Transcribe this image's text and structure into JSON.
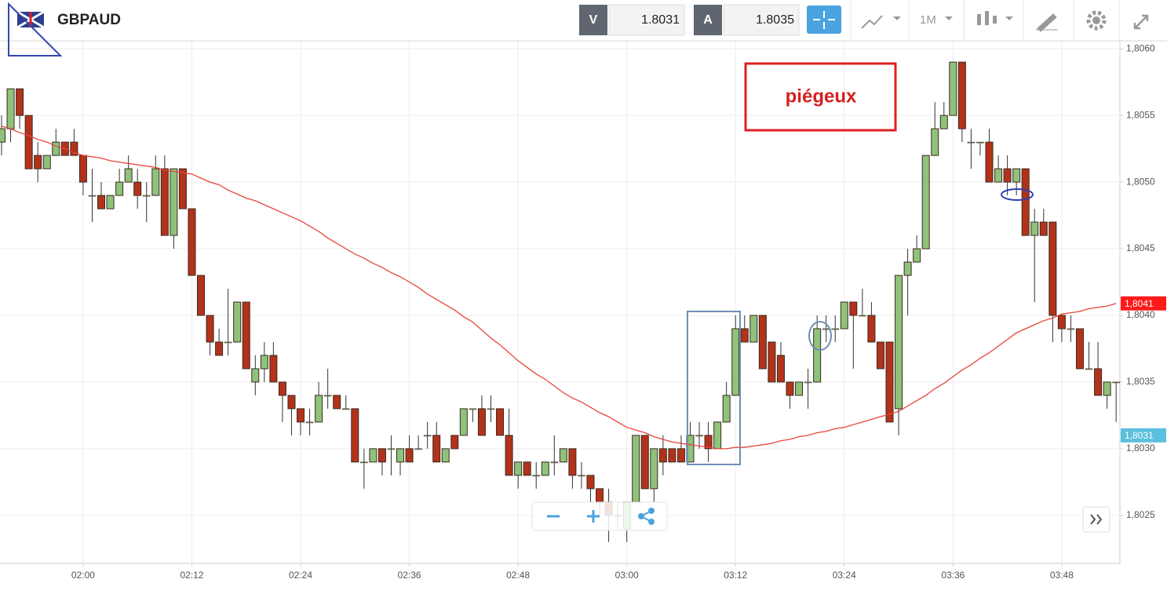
{
  "toolbar": {
    "symbol": "GBPAUD",
    "bid_label": "V",
    "bid": "1.8031",
    "ask_label": "A",
    "ask": "1.8035",
    "timeframe": "1M"
  },
  "chart_data": {
    "type": "candlestick",
    "annotation": "piégeux",
    "categories": [
      null,
      null,
      null,
      null,
      null,
      null,
      null,
      null,
      null,
      "02:00",
      null,
      null,
      null,
      null,
      null,
      null,
      null,
      null,
      null,
      null,
      null,
      "02:12",
      null,
      null,
      null,
      null,
      null,
      null,
      null,
      null,
      null,
      null,
      null,
      "02:24",
      null,
      null,
      null,
      null,
      null,
      null,
      null,
      null,
      null,
      null,
      null,
      "02:36",
      null,
      null,
      null,
      null,
      null,
      null,
      null,
      null,
      null,
      null,
      null,
      "02:48",
      null,
      null,
      null,
      null,
      null,
      null,
      null,
      null,
      null,
      null,
      null,
      "03:00",
      null,
      null,
      null,
      null,
      null,
      null,
      null,
      null,
      null,
      null,
      null,
      "03:12",
      null,
      null,
      null,
      null,
      null,
      null,
      null,
      null,
      null,
      null,
      null,
      "03:24",
      null,
      null,
      null,
      null,
      null,
      null,
      null,
      null,
      null,
      null,
      null,
      "03:36",
      null,
      null,
      null,
      null,
      null,
      null,
      null,
      null,
      null,
      null,
      null,
      "03:48",
      null,
      null,
      null,
      null,
      null,
      null
    ],
    "open": [
      1.8053,
      1.8054,
      1.8057,
      1.8055,
      1.8052,
      1.8051,
      1.8052,
      1.8053,
      1.8053,
      1.8052,
      1.8049,
      1.8049,
      1.8048,
      1.8049,
      1.805,
      1.805,
      1.8049,
      1.8049,
      1.8051,
      1.8046,
      1.8051,
      1.8048,
      1.8043,
      1.804,
      1.8038,
      1.8038,
      1.8038,
      1.8041,
      1.8035,
      1.8036,
      1.8037,
      1.8035,
      1.8034,
      1.8033,
      1.8032,
      1.8032,
      1.8034,
      1.8034,
      1.8033,
      1.8033,
      1.8029,
      1.8029,
      1.803,
      1.803,
      1.8029,
      1.803,
      1.803,
      1.8031,
      1.8031,
      1.8029,
      1.8031,
      1.8031,
      1.8033,
      1.8033,
      1.8033,
      1.8033,
      1.8031,
      1.8028,
      1.8029,
      1.8028,
      1.8028,
      1.8029,
      1.8029,
      1.803,
      1.8028,
      1.8028,
      1.8027,
      1.8026,
      1.8025,
      1.8024,
      1.8026,
      1.8031,
      1.8027,
      1.803,
      1.803,
      1.803,
      1.8029,
      1.8031,
      1.8031,
      1.803,
      1.8032,
      1.8034,
      1.8039,
      1.8038,
      1.804,
      1.8038,
      1.8037,
      1.8035,
      1.8034,
      1.8035,
      1.8035,
      1.8039,
      1.8039,
      1.8039,
      1.8041,
      1.804,
      1.804,
      1.8038,
      1.8038,
      1.8033,
      1.8043,
      1.8044,
      1.8045,
      1.8052,
      1.8054,
      1.8055,
      1.8059,
      1.8053,
      1.8053,
      1.8053,
      1.805,
      1.8051,
      1.805,
      1.8051,
      1.8046,
      1.8047,
      1.8047,
      1.804,
      1.8039,
      1.8039,
      1.8036,
      1.8036,
      1.8034,
      1.8035
    ],
    "high": [
      1.8055,
      1.8057,
      1.8057,
      1.8055,
      1.8053,
      1.8052,
      1.8054,
      1.8053,
      1.8054,
      1.8052,
      1.8051,
      1.805,
      1.8049,
      1.8051,
      1.8052,
      1.8051,
      1.805,
      1.8052,
      1.8052,
      1.8051,
      1.8051,
      1.8048,
      1.8043,
      1.804,
      1.8039,
      1.8042,
      1.8041,
      1.8041,
      1.8037,
      1.8038,
      1.8038,
      1.8035,
      1.8034,
      1.8033,
      1.8033,
      1.8035,
      1.8036,
      1.8034,
      1.8034,
      1.8033,
      1.803,
      1.803,
      1.803,
      1.8031,
      1.803,
      1.8031,
      1.8031,
      1.8032,
      1.8032,
      1.803,
      1.8031,
      1.8033,
      1.8033,
      1.8034,
      1.8034,
      1.8033,
      1.8033,
      1.8029,
      1.8029,
      1.8029,
      1.8029,
      1.8031,
      1.803,
      1.803,
      1.8029,
      1.8028,
      1.8027,
      1.8027,
      1.8026,
      1.8026,
      1.8031,
      1.8031,
      1.803,
      1.8031,
      1.803,
      1.8031,
      1.8032,
      1.8032,
      1.8032,
      1.8032,
      1.8035,
      1.804,
      1.804,
      1.804,
      1.804,
      1.8038,
      1.8038,
      1.8035,
      1.8035,
      1.8036,
      1.804,
      1.804,
      1.804,
      1.8041,
      1.8041,
      1.8042,
      1.8041,
      1.8038,
      1.8038,
      1.8043,
      1.8045,
      1.8046,
      1.8052,
      1.8056,
      1.8056,
      1.8059,
      1.8059,
      1.8054,
      1.8053,
      1.8054,
      1.8052,
      1.8052,
      1.8051,
      1.8051,
      1.8048,
      1.8048,
      1.8047,
      1.804,
      1.804,
      1.8039,
      1.8038,
      1.8038,
      1.8035,
      1.8035
    ],
    "low": [
      1.8052,
      1.8053,
      1.8054,
      1.8051,
      1.805,
      1.8051,
      1.8052,
      1.8052,
      1.8052,
      1.8049,
      1.8047,
      1.8048,
      1.8048,
      1.8049,
      1.805,
      1.8048,
      1.8047,
      1.8049,
      1.8046,
      1.8045,
      1.8048,
      1.8043,
      1.804,
      1.8037,
      1.8037,
      1.8037,
      1.8038,
      1.8036,
      1.8034,
      1.8035,
      1.8035,
      1.8032,
      1.8031,
      1.8031,
      1.8031,
      1.8032,
      1.8033,
      1.8033,
      1.8033,
      1.8029,
      1.8027,
      1.8029,
      1.8028,
      1.8028,
      1.8028,
      1.8029,
      1.803,
      1.803,
      1.8029,
      1.8029,
      1.803,
      1.8031,
      1.8032,
      1.8031,
      1.8032,
      1.8031,
      1.8028,
      1.8027,
      1.8028,
      1.8027,
      1.8028,
      1.8028,
      1.8029,
      1.8027,
      1.8027,
      1.8026,
      1.8025,
      1.8023,
      1.8024,
      1.8023,
      1.8026,
      1.8027,
      1.8026,
      1.8028,
      1.8029,
      1.8029,
      1.8029,
      1.803,
      1.8029,
      1.803,
      1.8032,
      1.8034,
      1.8038,
      1.8038,
      1.8036,
      1.8035,
      1.8035,
      1.8033,
      1.8034,
      1.8033,
      1.8035,
      1.8038,
      1.8038,
      1.8039,
      1.8036,
      1.804,
      1.8038,
      1.8036,
      1.8032,
      1.8031,
      1.804,
      1.8044,
      1.8045,
      1.8052,
      1.8054,
      1.8055,
      1.8053,
      1.8051,
      1.8052,
      1.805,
      1.805,
      1.8049,
      1.8049,
      1.8046,
      1.8041,
      1.8046,
      1.8038,
      1.8038,
      1.8038,
      1.8036,
      1.8036,
      1.8034,
      1.8033,
      1.8032
    ],
    "close": [
      1.8054,
      1.8057,
      1.8055,
      1.8051,
      1.8051,
      1.8052,
      1.8053,
      1.8052,
      1.8052,
      1.805,
      1.8049,
      1.8048,
      1.8049,
      1.805,
      1.8051,
      1.8049,
      1.8049,
      1.8051,
      1.8046,
      1.8051,
      1.8048,
      1.8043,
      1.804,
      1.8038,
      1.8037,
      1.8038,
      1.8041,
      1.8036,
      1.8036,
      1.8037,
      1.8035,
      1.8034,
      1.8033,
      1.8032,
      1.8032,
      1.8034,
      1.8034,
      1.8033,
      1.8033,
      1.8029,
      1.8029,
      1.803,
      1.8029,
      1.803,
      1.803,
      1.8029,
      1.803,
      1.8031,
      1.8029,
      1.803,
      1.803,
      1.8033,
      1.8033,
      1.8031,
      1.8033,
      1.8031,
      1.8028,
      1.8029,
      1.8028,
      1.8028,
      1.8029,
      1.8029,
      1.803,
      1.8028,
      1.8028,
      1.8027,
      1.8026,
      1.8025,
      1.8025,
      1.8026,
      1.8031,
      1.8027,
      1.803,
      1.8029,
      1.8029,
      1.8029,
      1.8031,
      1.8031,
      1.803,
      1.8032,
      1.8034,
      1.8039,
      1.8038,
      1.804,
      1.8036,
      1.8035,
      1.8035,
      1.8034,
      1.8035,
      1.8035,
      1.8039,
      1.8039,
      1.8039,
      1.8041,
      1.804,
      1.804,
      1.8038,
      1.8036,
      1.8032,
      1.8043,
      1.8044,
      1.8045,
      1.8052,
      1.8054,
      1.8055,
      1.8059,
      1.8054,
      1.8053,
      1.8053,
      1.805,
      1.8051,
      1.805,
      1.8051,
      1.8046,
      1.8047,
      1.8046,
      1.804,
      1.8039,
      1.8039,
      1.8036,
      1.8036,
      1.8034,
      1.8035,
      1.8035
    ],
    "up_color": "#8fc27a",
    "down_color": "#b2331a",
    "moving_average": {
      "color": "#e8443a",
      "values": [
        1.80542,
        1.8054,
        1.80537,
        1.80535,
        1.80532,
        1.8053,
        1.80527,
        1.80525,
        1.80522,
        1.8052,
        1.80519,
        1.80518,
        1.80516,
        1.80515,
        1.80514,
        1.80513,
        1.80512,
        1.80511,
        1.80509,
        1.80508,
        1.80507,
        1.80506,
        1.80503,
        1.805,
        1.80498,
        1.80494,
        1.80491,
        1.80488,
        1.80486,
        1.80483,
        1.8048,
        1.80477,
        1.80474,
        1.80471,
        1.80467,
        1.80463,
        1.80458,
        1.80454,
        1.8045,
        1.80446,
        1.80443,
        1.80439,
        1.80436,
        1.80432,
        1.80429,
        1.80425,
        1.80421,
        1.80416,
        1.80412,
        1.80408,
        1.80404,
        1.80399,
        1.80395,
        1.80389,
        1.80383,
        1.80378,
        1.80372,
        1.80366,
        1.80361,
        1.80356,
        1.80352,
        1.80347,
        1.80342,
        1.80338,
        1.80335,
        1.80331,
        1.80327,
        1.80324,
        1.8032,
        1.80316,
        1.80314,
        1.80312,
        1.80309,
        1.80307,
        1.80305,
        1.80304,
        1.80303,
        1.80302,
        1.80301,
        1.803,
        1.803,
        1.80301,
        1.80301,
        1.80302,
        1.80303,
        1.80304,
        1.80306,
        1.80307,
        1.80309,
        1.8031,
        1.80312,
        1.80313,
        1.80315,
        1.80316,
        1.80318,
        1.8032,
        1.80322,
        1.80324,
        1.80326,
        1.80328,
        1.80332,
        1.80336,
        1.8034,
        1.80345,
        1.80349,
        1.80354,
        1.80359,
        1.80363,
        1.80368,
        1.80372,
        1.80377,
        1.80382,
        1.80387,
        1.8039,
        1.80393,
        1.80396,
        1.80398,
        1.80401,
        1.80402,
        1.80403,
        1.80405,
        1.80406,
        1.80407,
        1.80409
      ]
    },
    "price_markers": [
      {
        "value": 1.80409,
        "label": "1,8041",
        "color": "#ff1a1a"
      },
      {
        "value": 1.8031,
        "label": "1,8031",
        "color": "#5bc0de"
      }
    ],
    "ylim": [
      1.80214,
      1.80606
    ],
    "yticks": [
      {
        "value": 1.8025,
        "label": "1,8025"
      },
      {
        "value": 1.803,
        "label": "1,8030"
      },
      {
        "value": 1.8035,
        "label": "1,8035"
      },
      {
        "value": 1.804,
        "label": "1,8040"
      },
      {
        "value": 1.8045,
        "label": "1,8045"
      },
      {
        "value": 1.805,
        "label": "1,8050"
      },
      {
        "value": 1.8055,
        "label": "1,8055"
      },
      {
        "value": 1.806,
        "label": "1,8060"
      }
    ],
    "grid": true
  }
}
